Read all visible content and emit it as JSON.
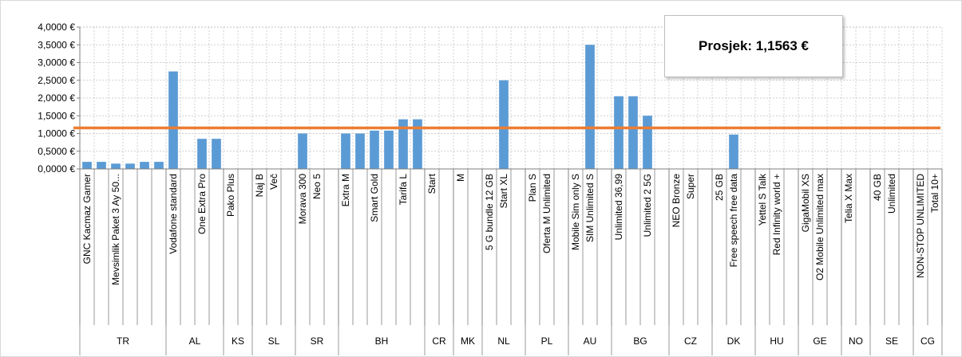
{
  "chart_data": {
    "type": "bar",
    "categories": [
      "GNC Kacmaz Gamer",
      "",
      "Mevsimlik Paket 3 Ay 50...",
      "",
      "",
      "",
      "Vodafone standard",
      "",
      "One Extra Pro",
      "",
      "Pako Plus",
      "",
      "Naj B",
      "Več",
      "",
      "Morava 300",
      "Neo 5",
      "",
      "Extra M",
      "",
      "Smart Gold",
      "",
      "Tarifa L",
      "",
      "Start",
      "",
      "M",
      "",
      "5 G bundle 12 GB",
      "Start XL",
      "",
      "Plan S",
      "Oferta M Unlimited",
      "",
      "Mobile Sim only S",
      "SIM Unlimited S",
      "",
      "Unlimited 36,99",
      "",
      "Unlimited 2 5G",
      "",
      "NEO Bronze",
      "Super",
      "",
      "25 GB",
      "Free speech free data",
      "",
      "Yettel S Talk",
      "Red Infinity world +",
      "",
      "GigaMobil XS",
      "O2 Mobile Unlimited max",
      "",
      "Telia X Max",
      "",
      "40 GB",
      "Unlimited",
      "",
      "NON-STOP UNLIMITED",
      "Total 10+"
    ],
    "values": [
      0.2,
      0.2,
      0.15,
      0.15,
      0.2,
      0.2,
      2.75,
      0,
      0.85,
      0.85,
      0,
      0,
      0,
      0,
      0,
      1.0,
      0,
      0,
      1.0,
      1.0,
      1.08,
      1.08,
      1.4,
      1.4,
      0,
      0,
      0,
      0,
      0,
      2.5,
      0,
      0,
      0,
      0,
      0,
      3.5,
      0,
      2.05,
      2.05,
      1.5,
      0,
      0,
      0,
      0,
      0,
      0.97,
      0,
      0,
      0,
      0,
      0,
      0,
      0,
      0,
      0,
      0,
      0,
      0,
      0,
      0
    ],
    "groups": [
      {
        "label": "TR",
        "count": 6
      },
      {
        "label": "AL",
        "count": 4
      },
      {
        "label": "KS",
        "count": 2
      },
      {
        "label": "SL",
        "count": 3
      },
      {
        "label": "SR",
        "count": 3
      },
      {
        "label": "BH",
        "count": 6
      },
      {
        "label": "CR",
        "count": 2
      },
      {
        "label": "MK",
        "count": 2
      },
      {
        "label": "NL",
        "count": 3
      },
      {
        "label": "PL",
        "count": 3
      },
      {
        "label": "AU",
        "count": 3
      },
      {
        "label": "BG",
        "count": 4
      },
      {
        "label": "CZ",
        "count": 3
      },
      {
        "label": "DK",
        "count": 3
      },
      {
        "label": "HU",
        "count": 3
      },
      {
        "label": "GE",
        "count": 3
      },
      {
        "label": "NO",
        "count": 2
      },
      {
        "label": "SE",
        "count": 3
      },
      {
        "label": "CG",
        "count": 2
      }
    ],
    "y_ticks": [
      "0,0000 €",
      "0,5000 €",
      "1,0000 €",
      "1,5000 €",
      "2,0000 €",
      "2,5000 €",
      "3,0000 €",
      "3,5000 €",
      "4,0000 €"
    ],
    "ylim": [
      0,
      4
    ],
    "average": 1.1563,
    "average_label": "Prosjek: 1,1563 €",
    "bar_color": "#5b9bd5",
    "average_line_color": "#ed7d31",
    "grid": true
  }
}
